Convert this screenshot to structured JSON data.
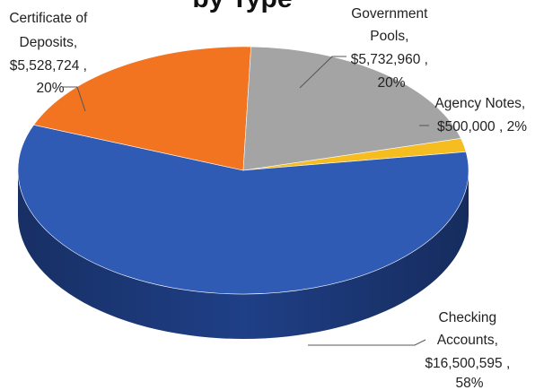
{
  "chart_data": {
    "type": "pie",
    "title": "by Type",
    "three_d": true,
    "start_angle_deg": 0,
    "slices": [
      {
        "name": "Agency Notes",
        "value": 500000,
        "percent": 2,
        "color": "#f5bd1f",
        "side_color": "#b8890e",
        "label_lines": [
          "Agency Notes,",
          "$500,000 , 2%"
        ]
      },
      {
        "name": "Checking Accounts",
        "value": 16500595,
        "percent": 58,
        "color": "#2f5bb5",
        "side_color": "#1f3f86",
        "label_lines": [
          "Checking",
          "Accounts,",
          "$16,500,595 ,",
          "58%"
        ]
      },
      {
        "name": "Certificate of Deposits",
        "value": 5528724,
        "percent": 20,
        "color": "#f27420",
        "side_color": "#b5540f",
        "label_lines": [
          "Certificate of",
          "Deposits,",
          "$5,528,724 ,",
          "20%"
        ]
      },
      {
        "name": "Government Pools",
        "value": 5732960,
        "percent": 20,
        "color": "#a5a4a4",
        "side_color": "#767575",
        "label_lines": [
          "Government",
          "Pools,",
          "$5,732,960 ,",
          "20%"
        ]
      }
    ]
  }
}
